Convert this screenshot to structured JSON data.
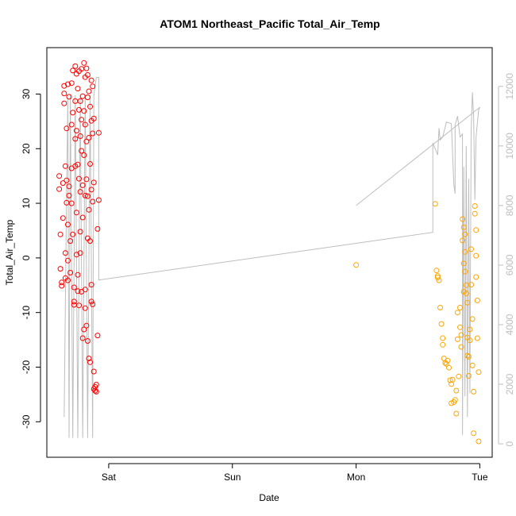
{
  "chart_data": {
    "type": "scatter",
    "title": "ATOM1 Northeast_Pacific Total_Air_Temp",
    "xlabel": "Date",
    "ylabel": "Total_Air_Temp",
    "x_ticks": [
      "Sat",
      "Sun",
      "Mon",
      "Tue"
    ],
    "x_tick_days": [
      0,
      1,
      2,
      3
    ],
    "xlim_days": [
      -0.5,
      3.1
    ],
    "ylim": [
      -36.5,
      38.5
    ],
    "y_ticks": [
      -30,
      -20,
      -10,
      0,
      10,
      20,
      30
    ],
    "y2_ticks": [
      0,
      2000,
      4000,
      6000,
      8000,
      10000,
      12000
    ],
    "y2lim": [
      -450,
      13300
    ],
    "grid": false,
    "colors": {
      "points_first_group": "#ff0000",
      "points_second_group": "#ffa500",
      "line": "#bebebe",
      "axis": "#000000",
      "secondary_axis": "#bebebe"
    },
    "series": [
      {
        "type": "scatter",
        "axis": "left",
        "color": "#ff0000",
        "points": [
          [
            -0.4,
            15.0
          ],
          [
            -0.4,
            12.6
          ],
          [
            -0.39,
            4.3
          ],
          [
            -0.39,
            -2.0
          ],
          [
            -0.38,
            -4.5
          ],
          [
            -0.38,
            -5.1
          ],
          [
            -0.37,
            13.7
          ],
          [
            -0.37,
            7.3
          ],
          [
            -0.36,
            31.5
          ],
          [
            -0.36,
            28.3
          ],
          [
            -0.36,
            30.1
          ],
          [
            -0.35,
            16.8
          ],
          [
            -0.35,
            0.9
          ],
          [
            -0.35,
            -3.7
          ],
          [
            -0.34,
            23.7
          ],
          [
            -0.34,
            14.2
          ],
          [
            -0.34,
            10.1
          ],
          [
            -0.33,
            31.8
          ],
          [
            -0.33,
            6.1
          ],
          [
            -0.33,
            -0.5
          ],
          [
            -0.33,
            -4.1
          ],
          [
            -0.32,
            29.5
          ],
          [
            -0.32,
            13.1
          ],
          [
            -0.32,
            11.4
          ],
          [
            -0.31,
            3.1
          ],
          [
            -0.31,
            -2.7
          ],
          [
            -0.3,
            32.0
          ],
          [
            -0.3,
            24.4
          ],
          [
            -0.3,
            16.4
          ],
          [
            -0.3,
            10.0
          ],
          [
            -0.29,
            34.3
          ],
          [
            -0.29,
            26.6
          ],
          [
            -0.29,
            4.3
          ],
          [
            -0.28,
            -5.4
          ],
          [
            -0.28,
            -8.6
          ],
          [
            -0.28,
            -8.0
          ],
          [
            -0.27,
            35.1
          ],
          [
            -0.27,
            28.7
          ],
          [
            -0.27,
            21.8
          ],
          [
            -0.27,
            16.8
          ],
          [
            -0.26,
            33.7
          ],
          [
            -0.26,
            23.3
          ],
          [
            -0.26,
            8.3
          ],
          [
            -0.26,
            0.6
          ],
          [
            -0.25,
            31.0
          ],
          [
            -0.25,
            17.1
          ],
          [
            -0.25,
            -3.1
          ],
          [
            -0.25,
            -6.1
          ],
          [
            -0.24,
            34.2
          ],
          [
            -0.24,
            27.1
          ],
          [
            -0.24,
            14.5
          ],
          [
            -0.24,
            -8.7
          ],
          [
            -0.23,
            28.7
          ],
          [
            -0.23,
            22.3
          ],
          [
            -0.23,
            12.1
          ],
          [
            -0.23,
            4.8
          ],
          [
            -0.23,
            0.9
          ],
          [
            -0.22,
            34.6
          ],
          [
            -0.22,
            25.3
          ],
          [
            -0.22,
            19.6
          ],
          [
            -0.22,
            -6.2
          ],
          [
            -0.21,
            29.6
          ],
          [
            -0.21,
            13.3
          ],
          [
            -0.21,
            7.4
          ],
          [
            -0.21,
            -14.7
          ],
          [
            -0.2,
            35.7
          ],
          [
            -0.2,
            26.9
          ],
          [
            -0.2,
            18.8
          ],
          [
            -0.2,
            -13.1
          ],
          [
            -0.19,
            33.1
          ],
          [
            -0.19,
            24.4
          ],
          [
            -0.19,
            11.4
          ],
          [
            -0.19,
            -5.8
          ],
          [
            -0.19,
            -9.2
          ],
          [
            -0.18,
            34.7
          ],
          [
            -0.18,
            21.3
          ],
          [
            -0.18,
            14.4
          ],
          [
            -0.18,
            -12.4
          ],
          [
            -0.17,
            33.5
          ],
          [
            -0.17,
            29.4
          ],
          [
            -0.17,
            11.3
          ],
          [
            -0.17,
            3.6
          ],
          [
            -0.17,
            -15.2
          ],
          [
            -0.16,
            30.5
          ],
          [
            -0.16,
            22.0
          ],
          [
            -0.16,
            8.8
          ],
          [
            -0.16,
            -18.4
          ],
          [
            -0.15,
            27.7
          ],
          [
            -0.15,
            17.2
          ],
          [
            -0.15,
            3.1
          ],
          [
            -0.15,
            -19.1
          ],
          [
            -0.14,
            32.5
          ],
          [
            -0.14,
            25.1
          ],
          [
            -0.14,
            12.5
          ],
          [
            -0.14,
            -4.9
          ],
          [
            -0.14,
            -8.0
          ],
          [
            -0.13,
            31.4
          ],
          [
            -0.13,
            22.8
          ],
          [
            -0.13,
            10.3
          ],
          [
            -0.13,
            -8.5
          ],
          [
            -0.12,
            25.5
          ],
          [
            -0.12,
            13.8
          ],
          [
            -0.12,
            -24.0
          ],
          [
            -0.12,
            -20.8
          ],
          [
            -0.11,
            -23.6
          ],
          [
            -0.11,
            -24.3
          ],
          [
            -0.1,
            -24.5
          ],
          [
            -0.1,
            -23.2
          ],
          [
            -0.09,
            -14.2
          ],
          [
            -0.09,
            5.3
          ],
          [
            -0.08,
            10.6
          ],
          [
            -0.08,
            22.9
          ]
        ]
      },
      {
        "type": "scatter",
        "axis": "left",
        "color": "#ffa500",
        "points": [
          [
            2.0,
            -1.3
          ],
          [
            2.64,
            9.9
          ],
          [
            2.65,
            -2.3
          ],
          [
            2.66,
            -3.3
          ],
          [
            2.66,
            -3.6
          ],
          [
            2.67,
            -4.1
          ],
          [
            2.68,
            -9.1
          ],
          [
            2.69,
            -12.1
          ],
          [
            2.7,
            -14.7
          ],
          [
            2.7,
            -15.9
          ],
          [
            2.71,
            -18.4
          ],
          [
            2.72,
            -19.2
          ],
          [
            2.73,
            -19.4
          ],
          [
            2.74,
            -18.8
          ],
          [
            2.75,
            -20.1
          ],
          [
            2.76,
            -22.4
          ],
          [
            2.77,
            -26.6
          ],
          [
            2.77,
            -23.1
          ],
          [
            2.78,
            -22.3
          ],
          [
            2.79,
            -26.4
          ],
          [
            2.8,
            -26.0
          ],
          [
            2.81,
            -28.5
          ],
          [
            2.81,
            -24.3
          ],
          [
            2.82,
            -14.9
          ],
          [
            2.82,
            -10.0
          ],
          [
            2.83,
            -21.7
          ],
          [
            2.84,
            -12.7
          ],
          [
            2.84,
            -9.1
          ],
          [
            2.85,
            -14.1
          ],
          [
            2.85,
            -16.3
          ],
          [
            2.86,
            7.1
          ],
          [
            2.86,
            3.2
          ],
          [
            2.87,
            5.6
          ],
          [
            2.87,
            -1.0
          ],
          [
            2.87,
            -6.2
          ],
          [
            2.88,
            4.3
          ],
          [
            2.88,
            1.1
          ],
          [
            2.88,
            -2.5
          ],
          [
            2.89,
            -5.0
          ],
          [
            2.89,
            -6.5
          ],
          [
            2.9,
            -8.2
          ],
          [
            2.9,
            -14.6
          ],
          [
            2.9,
            -17.9
          ],
          [
            2.91,
            -18.1
          ],
          [
            2.91,
            -21.6
          ],
          [
            2.92,
            -15.1
          ],
          [
            2.92,
            -13.1
          ],
          [
            2.93,
            1.6
          ],
          [
            2.93,
            -4.9
          ],
          [
            2.94,
            -11.2
          ],
          [
            2.94,
            -19.7
          ],
          [
            2.95,
            -24.5
          ],
          [
            2.95,
            -32.1
          ],
          [
            2.96,
            9.5
          ],
          [
            2.96,
            8.1
          ],
          [
            2.97,
            5.1
          ],
          [
            2.97,
            0.4
          ],
          [
            2.97,
            -3.5
          ],
          [
            2.98,
            -7.8
          ],
          [
            2.98,
            -14.7
          ],
          [
            2.99,
            -20.9
          ],
          [
            2.99,
            -33.6
          ]
        ]
      },
      {
        "type": "line",
        "axis": "right",
        "color": "#bebebe",
        "points": [
          [
            -0.36,
            900
          ],
          [
            -0.34,
            8500
          ],
          [
            -0.33,
            11600
          ],
          [
            -0.32,
            200
          ],
          [
            -0.31,
            11700
          ],
          [
            -0.29,
            200
          ],
          [
            -0.27,
            11700
          ],
          [
            -0.25,
            200
          ],
          [
            -0.23,
            11700
          ],
          [
            -0.21,
            200
          ],
          [
            -0.19,
            11700
          ],
          [
            -0.17,
            200
          ],
          [
            -0.15,
            11700
          ],
          [
            -0.13,
            200
          ],
          [
            -0.12,
            11700
          ],
          [
            -0.1,
            12300
          ],
          [
            -0.08,
            12300
          ],
          [
            -0.08,
            5500
          ],
          [
            2.62,
            7100
          ],
          [
            2.62,
            10100
          ],
          [
            2.66,
            9700
          ],
          [
            2.67,
            10600
          ],
          [
            2.68,
            10200
          ],
          [
            2.7,
            10300
          ],
          [
            2.73,
            10800
          ],
          [
            2.77,
            10750
          ],
          [
            2.79,
            8700
          ],
          [
            2.8,
            8400
          ],
          [
            2.8,
            10700
          ],
          [
            2.82,
            11000
          ],
          [
            2.84,
            10300
          ],
          [
            2.86,
            10400
          ],
          [
            2.86,
            300
          ],
          [
            2.87,
            9300
          ],
          [
            2.88,
            1600
          ],
          [
            2.89,
            10000
          ],
          [
            2.9,
            900
          ],
          [
            2.91,
            8900
          ],
          [
            2.92,
            1700
          ],
          [
            2.93,
            10500
          ],
          [
            2.94,
            11800
          ],
          [
            2.95,
            11000
          ],
          [
            2.96,
            8200
          ],
          [
            2.97,
            10300
          ],
          [
            2.99,
            11200
          ],
          [
            3.0,
            11300
          ]
        ]
      },
      {
        "type": "line",
        "axis": "right",
        "color": "#bebebe",
        "points": [
          [
            2.0,
            8000
          ],
          [
            3.0,
            11300
          ]
        ]
      }
    ]
  }
}
